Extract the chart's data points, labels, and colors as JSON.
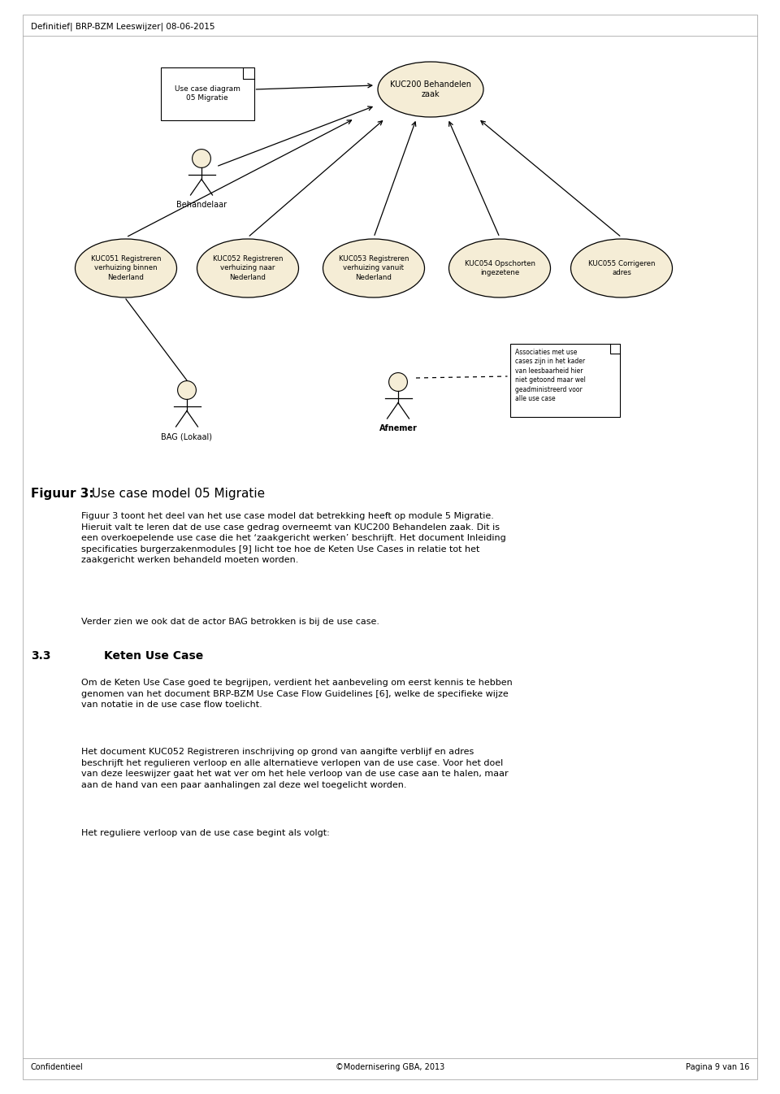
{
  "bg_color": "#ffffff",
  "header_text": "Definitief| BRP-BZM Leeswijzer| 08-06-2015",
  "footer_left": "Confidentieel",
  "footer_center": "©Modernisering GBA, 2013",
  "footer_right": "Pagina 9 van 16",
  "diagram_box_label": "Use case diagram\n05 Migratie",
  "main_ellipse_label": "KUC200 Behandelen\nzaak",
  "actor_behandelaar_label": "Behandelaar",
  "actor_bag_label": "BAG (Lokaal)",
  "actor_afnemer_label": "Afnemer",
  "uc_labels": [
    "KUC051 Registreren\nverhuizing binnen\nNederland",
    "KUC052 Registreren\nverhuizing naar\nNederland",
    "KUC053 Registreren\nverhuizing vanuit\nNederland",
    "KUC054 Opschorten\ningezetene",
    "KUC055 Corrigeren\nadres"
  ],
  "note_text": "Associaties met use\ncases zijn in het kader\nvan leesbaarheid hier\nniet getoond maar wel\ngeadministreerd voor\nalle use case",
  "figure_title_bold": "Figuur 3:",
  "figure_title_rest": " Use case model 05 Migratie",
  "para1_line1": "Figuur 3 toont het deel van het use case model dat betrekking heeft op module 5 Migratie.",
  "para1_line2": "Hieruit valt te leren dat de use case gedrag overneemt van KUC200 Behandelen zaak. Dit is",
  "para1_line3": "een overkoepelende use case die het ‘zaakgericht werken’ beschrijft. Het document ",
  "para1_italic": "Inleiding",
  "para1_line3b": "",
  "para1_line4_italic": "specificaties burgerzakenmodules",
  "para1_line4_rest": " [9] licht toe hoe de Keten Use Cases in relatie tot het",
  "para1_line5": "zaakgericht werken behandeld moeten worden.",
  "para2": "Verder zien we ook dat de actor BAG betrokken is bij de use case.",
  "section_num": "3.3",
  "section_title": "Keten Use Case",
  "para3_line1": "Om de Keten Use Case goed te begrijpen, verdient het aanbeveling om eerst kennis te hebben",
  "para3_line2": "genomen van het document ",
  "para3_italic": "BRP-BZM Use Case Flow Guidelines",
  "para3_line2b": " [6], welke de specifieke wijze",
  "para3_line3": "van notatie in de use case flow toelicht.",
  "para4_line1": "Het document ",
  "para4_italic": "KUC052 Registreren inschrijving op grond van aangifte verblijf en adres",
  "para4_line2": "beschrijft het regulieren verloop en alle alternatieve verlopen van de use case. Voor het doel",
  "para4_line3": "van deze leeswijzer gaat het wat ver om het hele verloop van de use case aan te halen, maar",
  "para4_line4": "aan de hand van een paar aanhalingen zal deze wel toegelicht worden.",
  "para5": "Het reguliere verloop van de use case begint als volgt:"
}
